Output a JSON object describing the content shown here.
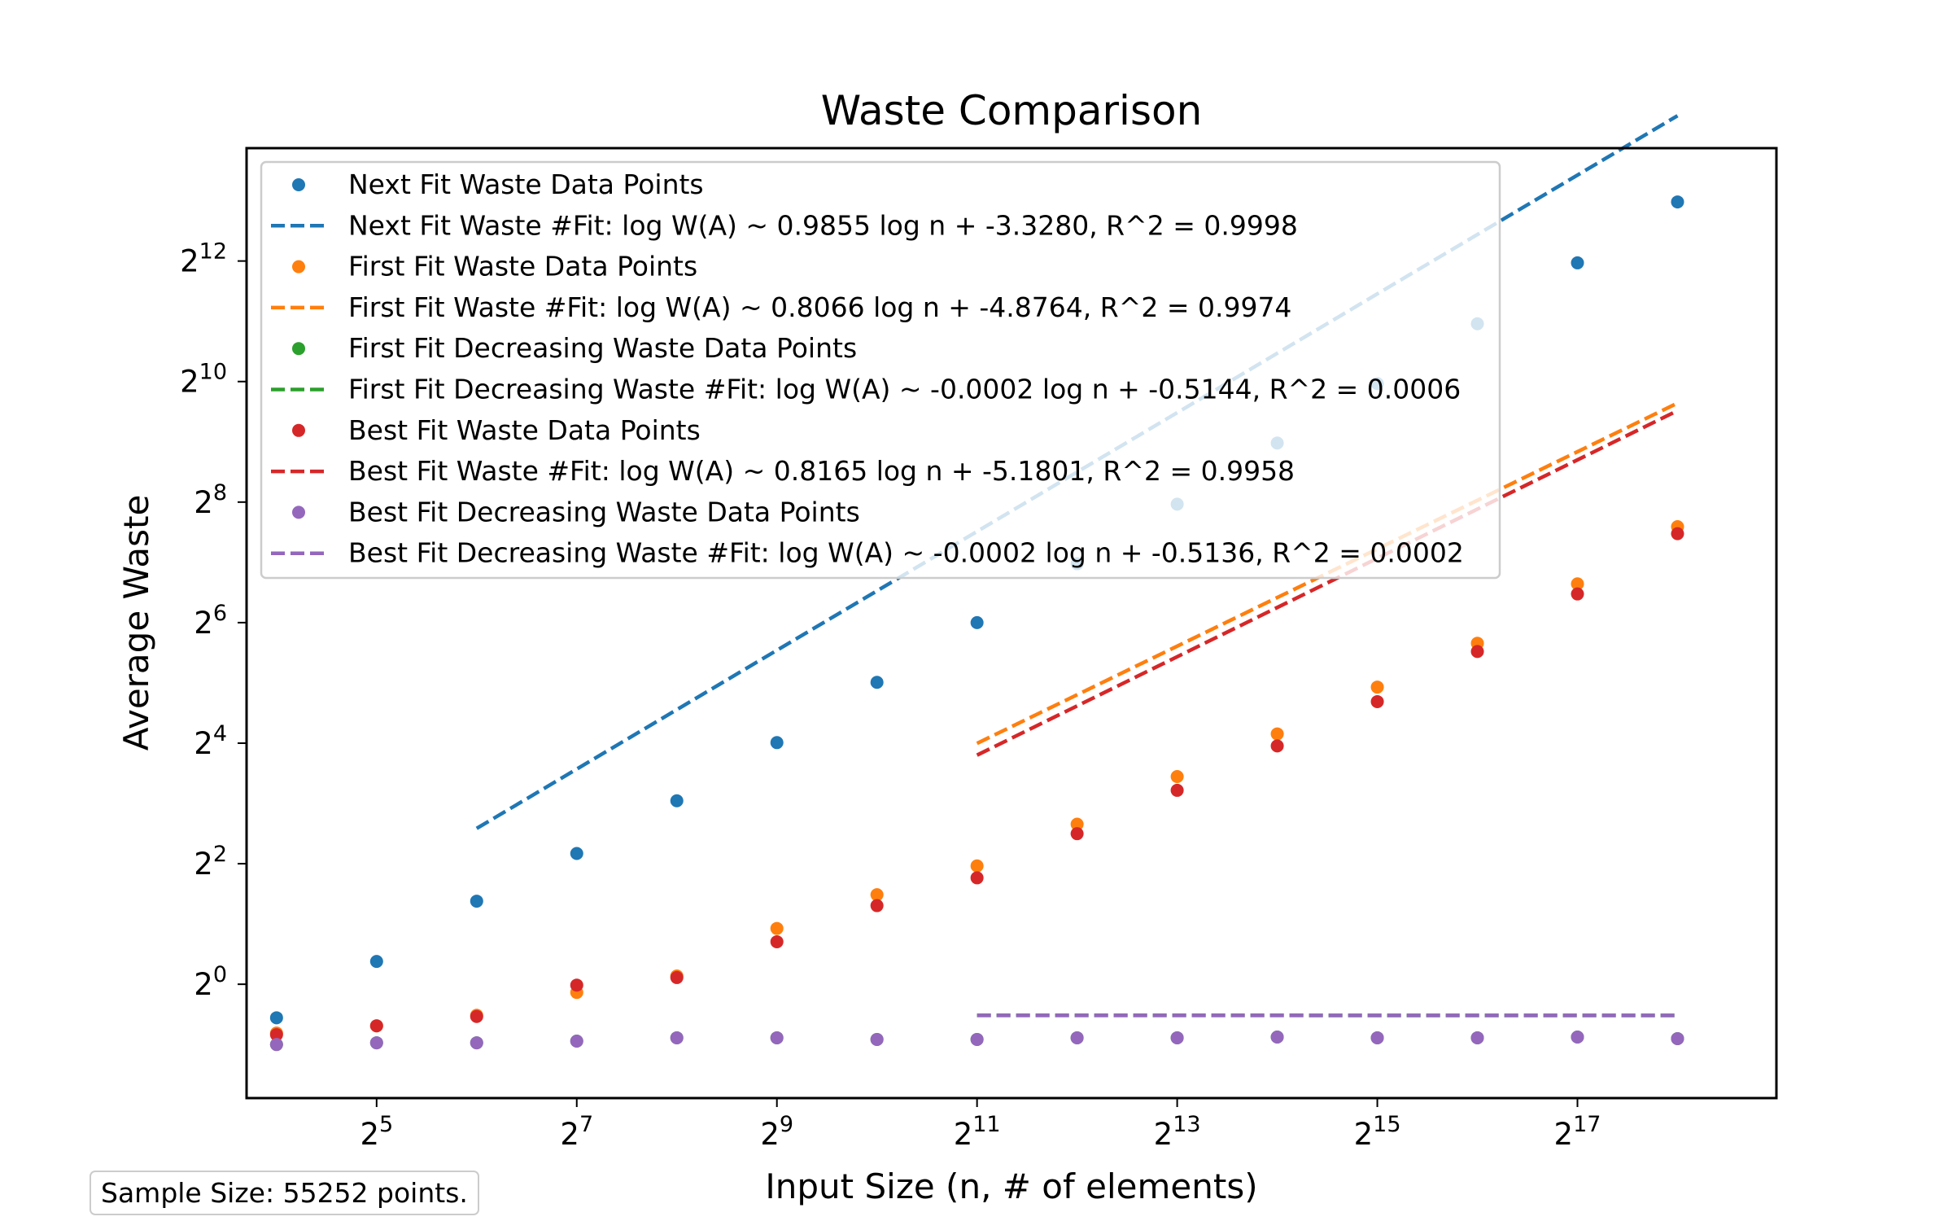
{
  "chart_data": {
    "type": "scatter",
    "title": "Waste Comparison",
    "xlabel": "Input Size (n, # of elements)",
    "ylabel": "Average Waste",
    "x_scale": "log2",
    "y_scale": "log2",
    "xlim": [
      13,
      520000
    ],
    "ylim": [
      0.27,
      15000
    ],
    "x_ticks": [
      32,
      128,
      512,
      2048,
      8192,
      32768,
      131072
    ],
    "x_tick_labels": [
      [
        "2",
        "5"
      ],
      [
        "2",
        "7"
      ],
      [
        "2",
        "9"
      ],
      [
        "2",
        "11"
      ],
      [
        "2",
        "13"
      ],
      [
        "2",
        "15"
      ],
      [
        "2",
        "17"
      ]
    ],
    "y_ticks": [
      1,
      4,
      16,
      64,
      256,
      1024,
      4096
    ],
    "y_tick_labels": [
      [
        "2",
        "0"
      ],
      [
        "2",
        "2"
      ],
      [
        "2",
        "4"
      ],
      [
        "2",
        "6"
      ],
      [
        "2",
        "8"
      ],
      [
        "2",
        "10"
      ],
      [
        "2",
        "12"
      ]
    ],
    "legend_position": "upper-left",
    "grid": false,
    "series": [
      {
        "name": "Next Fit Waste Data Points",
        "fit_name": "Next Fit Waste #Fit: log W(A) ~ 0.9855 log n + -3.3280, R^2 = 0.9998",
        "color": "#1f77b4",
        "x": [
          16,
          32,
          64,
          128,
          256,
          512,
          1024,
          2048,
          4096,
          8192,
          16384,
          32768,
          65536,
          131072,
          262144
        ],
        "y": [
          0.68,
          1.3,
          2.6,
          4.5,
          8.25,
          16.1,
          32.2,
          64.0,
          126,
          250,
          505,
          1000,
          1990,
          4010,
          8080
        ],
        "fit": {
          "slope": 0.9855,
          "intercept": -3.328,
          "x_range": [
            64,
            262144
          ]
        }
      },
      {
        "name": "First Fit Waste Data Points",
        "fit_name": "First Fit Waste #Fit: log W(A) ~ 0.8066 log n + -4.8764, R^2 = 0.9974",
        "color": "#ff7f0e",
        "x": [
          16,
          32,
          64,
          128,
          256,
          512,
          1024,
          2048,
          4096,
          8192,
          16384,
          32768,
          65536,
          131072,
          262144
        ],
        "y": [
          0.57,
          0.62,
          0.7,
          0.91,
          1.1,
          1.9,
          2.8,
          3.9,
          6.3,
          10.9,
          17.8,
          30.5,
          50.5,
          100,
          193
        ],
        "fit": {
          "slope": 0.8066,
          "intercept": -4.8764,
          "x_range": [
            2048,
            262144
          ]
        }
      },
      {
        "name": "First Fit Decreasing Waste Data Points",
        "fit_name": "First Fit Decreasing Waste #Fit: log W(A) ~ -0.0002 log n + -0.5144, R^2 = 0.0006",
        "color": "#2ca02c",
        "x": [
          16,
          32,
          64,
          128,
          256,
          512,
          1024,
          2048,
          4096,
          8192,
          16384,
          32768,
          65536,
          131072,
          262144
        ],
        "y": [
          0.5,
          0.51,
          0.51,
          0.52,
          0.54,
          0.54,
          0.53,
          0.53,
          0.54,
          0.54,
          0.545,
          0.54,
          0.54,
          0.545,
          0.535
        ],
        "fit": {
          "slope": -0.0002,
          "intercept": -0.5144,
          "x_range": [
            2048,
            262144
          ]
        }
      },
      {
        "name": "Best Fit Waste Data Points",
        "fit_name": "Best Fit Waste #Fit: log W(A) ~ 0.8165 log n + -5.1801, R^2 = 0.9958",
        "color": "#d62728",
        "x": [
          16,
          32,
          64,
          128,
          256,
          512,
          1024,
          2048,
          4096,
          8192,
          16384,
          32768,
          65536,
          131072,
          262144
        ],
        "y": [
          0.56,
          0.62,
          0.69,
          0.99,
          1.08,
          1.63,
          2.47,
          3.4,
          5.65,
          9.3,
          15.5,
          25.8,
          45.9,
          89,
          178
        ],
        "fit": {
          "slope": 0.8165,
          "intercept": -5.1801,
          "x_range": [
            2048,
            262144
          ]
        }
      },
      {
        "name": "Best Fit Decreasing Waste Data Points",
        "fit_name": "Best Fit Decreasing Waste #Fit: log W(A) ~ -0.0002 log n + -0.5136, R^2 = 0.0002",
        "color": "#9467bd",
        "x": [
          16,
          32,
          64,
          128,
          256,
          512,
          1024,
          2048,
          4096,
          8192,
          16384,
          32768,
          65536,
          131072,
          262144
        ],
        "y": [
          0.5,
          0.51,
          0.51,
          0.52,
          0.54,
          0.54,
          0.53,
          0.53,
          0.54,
          0.54,
          0.545,
          0.54,
          0.54,
          0.545,
          0.535
        ],
        "fit": {
          "slope": -0.0002,
          "intercept": -0.5136,
          "x_range": [
            2048,
            262144
          ]
        }
      }
    ]
  },
  "footer": {
    "sample_size": "Sample Size: 55252 points."
  }
}
